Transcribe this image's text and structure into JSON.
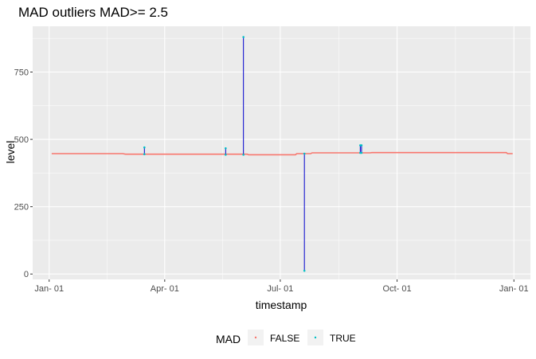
{
  "chart_data": {
    "type": "line",
    "title": "MAD outliers MAD>= 2.5",
    "xlabel": "timestamp",
    "ylabel": "level",
    "x_ticks": [
      "Jan- 01",
      "Apr- 01",
      "Jul- 01",
      "Oct- 01",
      "Jan- 01"
    ],
    "x_tick_dates": [
      "2020-01-01",
      "2020-04-01",
      "2020-07-01",
      "2020-10-01",
      "2021-01-01"
    ],
    "xlim": [
      "2019-12-19",
      "2021-01-14"
    ],
    "y_ticks": [
      0,
      250,
      500,
      750
    ],
    "ylim": [
      -20,
      920
    ],
    "grid": true,
    "background": "#EBEBEB",
    "legend": {
      "title": "MAD",
      "position": "bottom",
      "entries": [
        {
          "label": "FALSE",
          "color": "#F8766D"
        },
        {
          "label": "TRUE",
          "color": "#00BFC4"
        }
      ]
    },
    "series": [
      {
        "name": "FALSE",
        "color": "#F8766D",
        "points": [
          [
            "2020-01-03",
            447
          ],
          [
            "2020-02-28",
            447
          ],
          [
            "2020-03-01",
            445
          ],
          [
            "2020-06-05",
            445
          ],
          [
            "2020-06-06",
            443
          ],
          [
            "2020-07-13",
            443
          ],
          [
            "2020-07-14",
            447
          ],
          [
            "2020-07-25",
            447
          ],
          [
            "2020-07-26",
            450
          ],
          [
            "2020-09-10",
            450
          ],
          [
            "2020-09-11",
            451
          ],
          [
            "2020-12-26",
            451
          ],
          [
            "2020-12-27",
            447
          ],
          [
            "2020-12-31",
            447
          ]
        ]
      }
    ],
    "anomalies": {
      "color": "#0000CD",
      "points_color": "#00BFC4",
      "spikes": [
        {
          "date": "2020-03-16",
          "low": 445,
          "high": 470
        },
        {
          "date": "2020-05-19",
          "low": 443,
          "high": 467
        },
        {
          "date": "2020-06-02",
          "low": 443,
          "high": 880
        },
        {
          "date": "2020-07-20",
          "low": 12,
          "high": 447
        },
        {
          "date": "2020-09-02",
          "low": 450,
          "high": 478
        },
        {
          "date": "2020-09-03",
          "low": 450,
          "high": 478
        }
      ]
    }
  }
}
